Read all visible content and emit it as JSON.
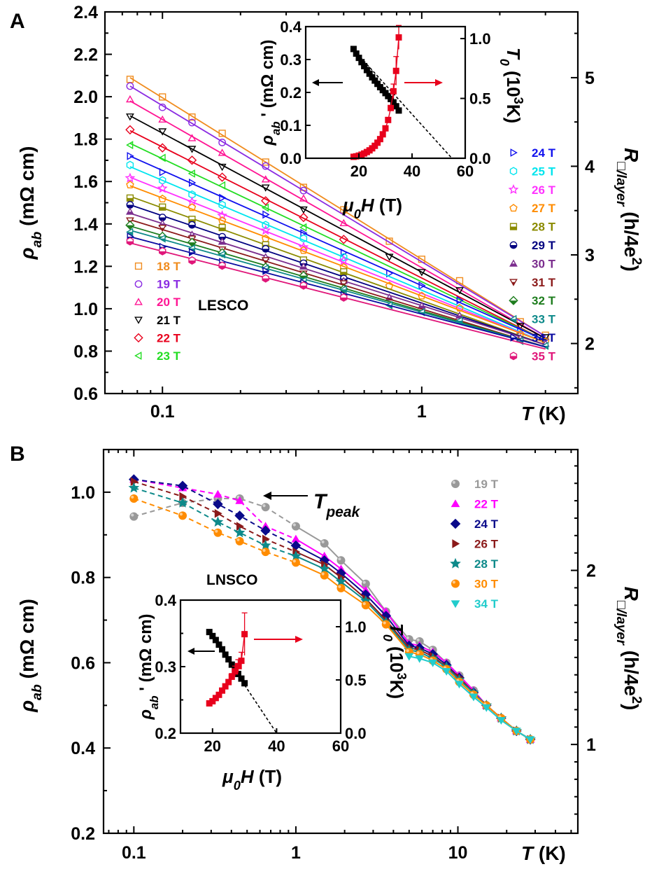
{
  "chart_data": [
    {
      "id": "A",
      "panel_label": "A",
      "type": "scatter",
      "x_scale": "log",
      "xlim": [
        0.06,
        4.0
      ],
      "ylim": [
        0.6,
        2.4
      ],
      "y2lim": [
        1.4355,
        5.742
      ],
      "x_ticks": [
        {
          "v": 0.1,
          "label": "0.1"
        },
        {
          "v": 1,
          "label": "1"
        }
      ],
      "y_ticks": [
        "0.6",
        "0.8",
        "1.0",
        "1.2",
        "1.4",
        "1.6",
        "1.8",
        "2.0",
        "2.2",
        "2.4"
      ],
      "y2_ticks": [
        {
          "v": 2,
          "label": "2"
        },
        {
          "v": 3,
          "label": "3"
        },
        {
          "v": 4,
          "label": "4"
        },
        {
          "v": 5,
          "label": "5"
        }
      ],
      "xlabel": "T (K)",
      "ylabel": "ρab (mΩ cm)",
      "y2label": "R□/layer (h/4e²)",
      "annotation": "LESCO",
      "temps_low": [
        0.075,
        0.1,
        0.13,
        0.17,
        0.25,
        0.35,
        0.5
      ],
      "temps_high": [
        0.75,
        1.0,
        1.4,
        2.4,
        3.0
      ],
      "series": [
        {
          "name": "18 T",
          "color": "#f08c1e",
          "marker": "square",
          "rho_0075": 2.09,
          "rho_3": 0.87
        },
        {
          "name": "19 T",
          "color": "#8a2be2",
          "marker": "circle",
          "rho_0075": 2.05,
          "rho_3": 0.87
        },
        {
          "name": "20 T",
          "color": "#ff1493",
          "marker": "triangle-up",
          "rho_0075": 1.98,
          "rho_3": 0.86
        },
        {
          "name": "21 T",
          "color": "#000000",
          "marker": "triangle-down",
          "rho_0075": 1.91,
          "rho_3": 0.86
        },
        {
          "name": "22 T",
          "color": "#e8001c",
          "marker": "diamond",
          "rho_0075": 1.84,
          "rho_3": 0.85
        },
        {
          "name": "23 T",
          "color": "#22dd22",
          "marker": "triangle-left",
          "rho_0075": 1.78,
          "rho_3": 0.85
        },
        {
          "name": "24 T",
          "color": "#1010ee",
          "marker": "triangle-right",
          "rho_0075": 1.72,
          "rho_3": 0.85
        },
        {
          "name": "25 T",
          "color": "#00e5ee",
          "marker": "hexagon",
          "rho_0075": 1.67,
          "rho_3": 0.84
        },
        {
          "name": "26 T",
          "color": "#ff33ff",
          "marker": "star",
          "rho_0075": 1.62,
          "rho_3": 0.84
        },
        {
          "name": "27 T",
          "color": "#ff8c00",
          "marker": "pentagon",
          "rho_0075": 1.58,
          "rho_3": 0.84
        },
        {
          "name": "28 T",
          "color": "#8b8b00",
          "marker": "square-half",
          "rho_0075": 1.53,
          "rho_3": 0.83
        },
        {
          "name": "29 T",
          "color": "#000080",
          "marker": "circle-half",
          "rho_0075": 1.49,
          "rho_3": 0.83
        },
        {
          "name": "30 T",
          "color": "#7b2d8e",
          "marker": "triangle-up-half",
          "rho_0075": 1.45,
          "rho_3": 0.83
        },
        {
          "name": "31 T",
          "color": "#8b1a1a",
          "marker": "triangle-down-half",
          "rho_0075": 1.42,
          "rho_3": 0.82
        },
        {
          "name": "32 T",
          "color": "#1e7d1e",
          "marker": "diamond-half",
          "rho_0075": 1.39,
          "rho_3": 0.82
        },
        {
          "name": "33 T",
          "color": "#0e8a8a",
          "marker": "triangle-left-half",
          "rho_0075": 1.37,
          "rho_3": 0.82
        },
        {
          "name": "34 T",
          "color": "#0a0aa0",
          "marker": "triangle-right-half",
          "rho_0075": 1.34,
          "rho_3": 0.82
        },
        {
          "name": "35 T",
          "color": "#e0177a",
          "marker": "hexagon-half",
          "rho_0075": 1.31,
          "rho_3": 0.81
        }
      ],
      "inset": {
        "xlim": [
          0,
          60
        ],
        "ylim": [
          0,
          0.4
        ],
        "y2lim": [
          0,
          1.1
        ],
        "x_ticks": [
          "20",
          "40",
          "60"
        ],
        "y_ticks": [
          "0.0",
          "0.1",
          "0.2",
          "0.3",
          "0.4"
        ],
        "y2_ticks": [
          "0.0",
          "0.5",
          "1.0"
        ],
        "xlabel": "μ0H (T)",
        "ylabel": "ρab' (mΩ cm)",
        "y2label": "T0 (10³K)",
        "rho_prime": {
          "name": "ρab'",
          "color": "#000000",
          "x": [
            18,
            19,
            20,
            21,
            22,
            23,
            24,
            25,
            26,
            27,
            28,
            29,
            30,
            31,
            32,
            33,
            34,
            35
          ],
          "y": [
            0.332,
            0.318,
            0.305,
            0.292,
            0.28,
            0.268,
            0.257,
            0.246,
            0.236,
            0.226,
            0.216,
            0.207,
            0.198,
            0.189,
            0.18,
            0.17,
            0.158,
            0.145
          ]
        },
        "rho_prime_fit": {
          "x": [
            18,
            55
          ],
          "y": [
            0.33,
            0.0
          ]
        },
        "T0": {
          "name": "T0",
          "color": "#e8001c",
          "x": [
            18,
            19,
            20,
            21,
            22,
            23,
            24,
            25,
            26,
            27,
            28,
            29,
            30,
            31,
            32,
            33,
            34,
            35
          ],
          "y": [
            0.012,
            0.016,
            0.022,
            0.03,
            0.04,
            0.052,
            0.066,
            0.083,
            0.104,
            0.13,
            0.16,
            0.2,
            0.25,
            0.32,
            0.42,
            0.56,
            0.73,
            1.01
          ],
          "err_upper": [
            0,
            0,
            0,
            0,
            0,
            0,
            0,
            0,
            0,
            0,
            0,
            0,
            0,
            0,
            0,
            0.06,
            0.12,
            0.1
          ]
        }
      }
    },
    {
      "id": "B",
      "panel_label": "B",
      "type": "scatter",
      "x_scale": "log",
      "xlim": [
        0.065,
        55
      ],
      "ylim": [
        0.2,
        1.1
      ],
      "y2lim": [
        0.4898,
        2.694
      ],
      "x_ticks": [
        {
          "v": 0.1,
          "label": "0.1"
        },
        {
          "v": 1,
          "label": "1"
        },
        {
          "v": 10,
          "label": "10"
        }
      ],
      "y_ticks": [
        "0.2",
        "0.4",
        "0.6",
        "0.8",
        "1.0"
      ],
      "y2_ticks": [
        {
          "v": 1,
          "label": "1"
        },
        {
          "v": 2,
          "label": "2"
        }
      ],
      "xlabel": "T (K)",
      "ylabel": "ρab (mΩ cm)",
      "y2label": "R□/layer (h/4e²)",
      "annotation": "LNSCO",
      "arrow_label": "Tpeak",
      "x": [
        0.1,
        0.2,
        0.33,
        0.45,
        0.65,
        1.0,
        1.5,
        1.9,
        2.7,
        3.6,
        5.0,
        5.8,
        7.0,
        8.5,
        10.2,
        12.5,
        15,
        18.5,
        23,
        28
      ],
      "series": [
        {
          "name": "19 T",
          "color": "#999999",
          "marker": "sphere",
          "y": [
            0.943,
            0.975,
            0.985,
            0.985,
            0.965,
            0.92,
            0.88,
            0.84,
            0.785,
            0.72,
            0.655,
            0.65,
            0.63,
            0.6,
            0.57,
            0.535,
            0.5,
            0.47,
            0.44,
            0.42
          ]
        },
        {
          "name": "22 T",
          "color": "#ff00ff",
          "marker": "triangle-up",
          "y": [
            1.03,
            1.01,
            0.995,
            0.98,
            0.92,
            0.89,
            0.85,
            0.82,
            0.77,
            0.72,
            0.645,
            0.64,
            0.625,
            0.6,
            0.57,
            0.535,
            0.5,
            0.47,
            0.44,
            0.42
          ]
        },
        {
          "name": "24 T",
          "color": "#0a0a8a",
          "marker": "diamond",
          "y": [
            1.03,
            1.015,
            0.972,
            0.945,
            0.91,
            0.875,
            0.84,
            0.81,
            0.76,
            0.71,
            0.64,
            0.635,
            0.62,
            0.595,
            0.565,
            0.53,
            0.5,
            0.47,
            0.44,
            0.42
          ]
        },
        {
          "name": "26 T",
          "color": "#8b1a1a",
          "marker": "triangle-right",
          "y": [
            1.025,
            0.99,
            0.95,
            0.92,
            0.89,
            0.86,
            0.83,
            0.8,
            0.75,
            0.7,
            0.635,
            0.63,
            0.615,
            0.59,
            0.565,
            0.53,
            0.5,
            0.47,
            0.44,
            0.42
          ]
        },
        {
          "name": "28 T",
          "color": "#0e8a8a",
          "marker": "star",
          "y": [
            1.01,
            0.975,
            0.93,
            0.905,
            0.875,
            0.85,
            0.82,
            0.79,
            0.745,
            0.695,
            0.63,
            0.625,
            0.61,
            0.59,
            0.56,
            0.53,
            0.5,
            0.47,
            0.44,
            0.42
          ]
        },
        {
          "name": "30 T",
          "color": "#ff8c00",
          "marker": "sphere",
          "y": [
            0.985,
            0.945,
            0.905,
            0.885,
            0.86,
            0.835,
            0.805,
            0.775,
            0.735,
            0.69,
            0.625,
            0.62,
            0.605,
            0.585,
            0.555,
            0.525,
            0.5,
            0.47,
            0.44,
            0.42
          ]
        },
        {
          "name": "34 T",
          "color": "#22cccc",
          "marker": "triangle-down",
          "y": [
            null,
            null,
            null,
            null,
            null,
            null,
            null,
            null,
            null,
            null,
            0.615,
            0.61,
            0.6,
            0.58,
            0.55,
            0.52,
            0.495,
            0.465,
            0.44,
            0.42
          ]
        }
      ],
      "inset": {
        "xlim": [
          10,
          60
        ],
        "ylim": [
          0.2,
          0.4
        ],
        "y2lim": [
          0,
          1.25
        ],
        "x_ticks": [
          "20",
          "40",
          "60"
        ],
        "y_ticks": [
          "0.2",
          "0.3",
          "0.4"
        ],
        "y2_ticks": [
          "0.0",
          "0.5",
          "1.0"
        ],
        "xlabel": "μ0H (T)",
        "ylabel": "ρab' (mΩ cm)",
        "y2label": "T0 (10³K)",
        "rho_prime": {
          "name": "ρab'",
          "color": "#000000",
          "x": [
            19,
            20,
            21,
            22,
            23,
            24,
            25,
            26,
            27,
            28,
            29,
            30
          ],
          "y": [
            0.352,
            0.346,
            0.34,
            0.333,
            0.326,
            0.318,
            0.311,
            0.303,
            0.296,
            0.289,
            0.282,
            0.275
          ]
        },
        "rho_prime_fit": {
          "x": [
            19,
            40
          ],
          "y": [
            0.352,
            0.2
          ]
        },
        "T0": {
          "name": "T0",
          "color": "#e8001c",
          "x": [
            19,
            20,
            21,
            22,
            23,
            24,
            25,
            26,
            27,
            28,
            29,
            30
          ],
          "y": [
            0.28,
            0.3,
            0.33,
            0.36,
            0.4,
            0.44,
            0.48,
            0.53,
            0.58,
            0.63,
            0.68,
            0.93
          ],
          "err_upper": [
            0,
            0,
            0,
            0,
            0,
            0,
            0,
            0.03,
            0.05,
            0.06,
            0.08,
            0.2
          ]
        }
      }
    }
  ]
}
